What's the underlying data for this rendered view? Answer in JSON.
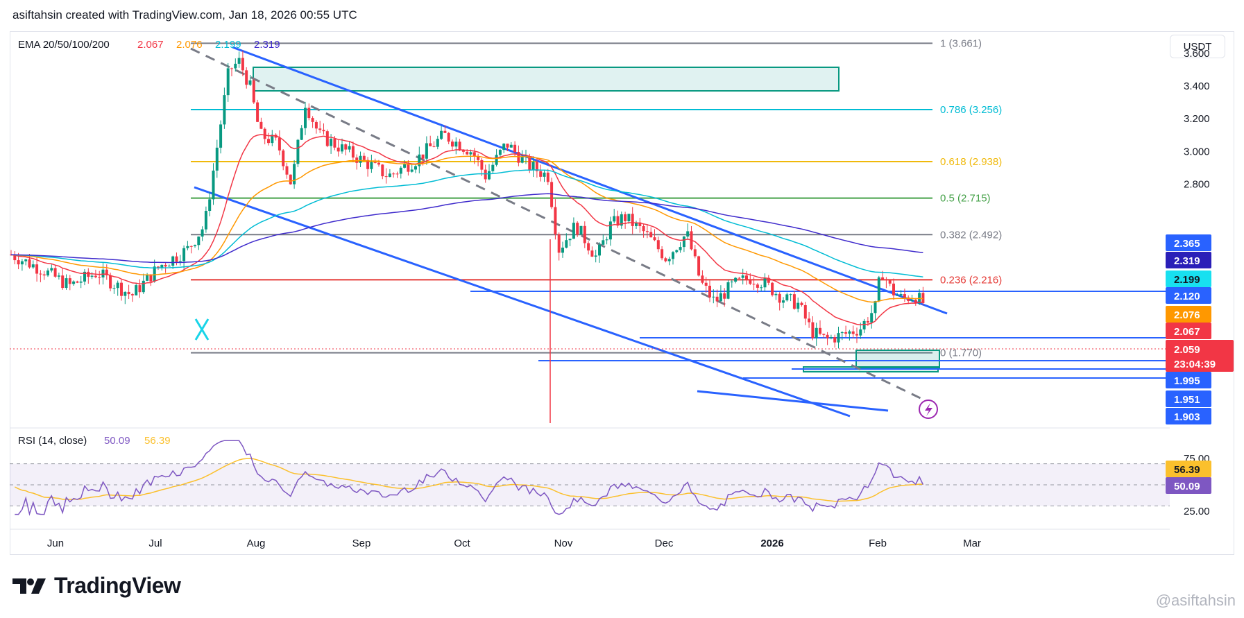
{
  "header": {
    "attribution": "asiftahsin created with TradingView.com, Jan 18, 2026 00:55 UTC"
  },
  "currency": "USDT",
  "brand": {
    "name": "TradingView",
    "watermark": "@asiftahsin"
  },
  "ema_legend": {
    "title": "EMA 20/50/100/200",
    "values": [
      {
        "value": "2.067",
        "color": "#f23645"
      },
      {
        "value": "2.076",
        "color": "#ff9800"
      },
      {
        "value": "2.199",
        "color": "#00bcd4"
      },
      {
        "value": "2.319",
        "color": "#3f2bcc"
      }
    ]
  },
  "rsi_legend": {
    "title": "RSI (14, close)",
    "values": [
      {
        "value": "50.09",
        "color": "#7e57c2"
      },
      {
        "value": "56.39",
        "color": "#fbc02d"
      }
    ]
  },
  "chart_data": {
    "type": "candlestick",
    "price_axis": {
      "ticks": [
        3.6,
        3.4,
        3.2,
        3.0,
        2.8
      ],
      "labels": [
        "3.600",
        "3.400",
        "3.200",
        "3.000",
        "2.800"
      ]
    },
    "time_axis": {
      "labels": [
        "Jun",
        "Jul",
        "Aug",
        "Sep",
        "Oct",
        "Nov",
        "Dec",
        "2026",
        "Feb",
        "Mar"
      ]
    },
    "fib_levels": [
      {
        "label": "1 (3.661)",
        "price": 3.661,
        "color": "#787b86"
      },
      {
        "label": "0.786 (3.256)",
        "price": 3.256,
        "color": "#00bcd4"
      },
      {
        "label": "0.618 (2.938)",
        "price": 2.938,
        "color": "#f0b90b"
      },
      {
        "label": "0.5 (2.715)",
        "price": 2.715,
        "color": "#43a047"
      },
      {
        "label": "0.382 (2.492)",
        "price": 2.492,
        "color": "#787b86"
      },
      {
        "label": "0.236 (2.216)",
        "price": 2.216,
        "color": "#e53935"
      },
      {
        "label": "0 (1.770)",
        "price": 1.77,
        "color": "#787b86"
      }
    ],
    "price_badges": [
      {
        "label": "2.365",
        "color": "#2962ff"
      },
      {
        "label": "2.319",
        "color": "#2a1fb8"
      },
      {
        "label": "2.199",
        "color": "#18e0f0"
      },
      {
        "label": "2.120",
        "color": "#2962ff"
      },
      {
        "label": "2.076",
        "color": "#ff9800"
      },
      {
        "label": "2.067",
        "color": "#f23645"
      },
      {
        "label": "2.059",
        "color": "#f23645"
      },
      {
        "label": "1.995",
        "color": "#2962ff"
      },
      {
        "label": "1.951",
        "color": "#2962ff"
      },
      {
        "label": "1.903",
        "color": "#2962ff"
      }
    ],
    "countdown": "23:04:39",
    "rsi_axis": {
      "labels": [
        "75.00",
        "25.00"
      ]
    },
    "rsi_badges": [
      {
        "label": "56.39",
        "color": "#fbc02d"
      },
      {
        "label": "50.09",
        "color": "#7e57c2"
      }
    ]
  }
}
